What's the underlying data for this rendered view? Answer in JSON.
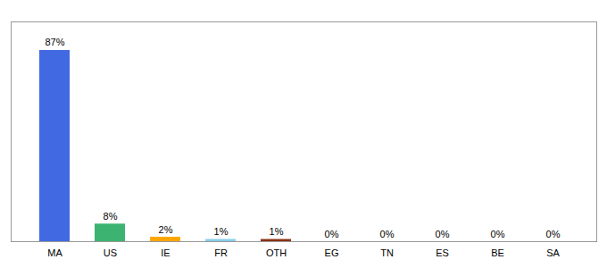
{
  "chart_data": {
    "type": "bar",
    "categories": [
      "MA",
      "US",
      "IE",
      "FR",
      "OTH",
      "EG",
      "TN",
      "ES",
      "BE",
      "SA"
    ],
    "values": [
      87,
      8,
      2,
      1,
      1,
      0,
      0,
      0,
      0,
      0
    ],
    "value_labels": [
      "87%",
      "8%",
      "2%",
      "1%",
      "1%",
      "0%",
      "0%",
      "0%",
      "0%",
      "0%"
    ],
    "colors": [
      "#4169e1",
      "#3cb371",
      "#ffa500",
      "#87ceeb",
      "#8b3214",
      "#4169e1",
      "#4169e1",
      "#4169e1",
      "#4169e1",
      "#4169e1"
    ],
    "ylim": [
      0,
      100
    ],
    "data_labels": true,
    "tick_labels": "x",
    "grid": false
  }
}
